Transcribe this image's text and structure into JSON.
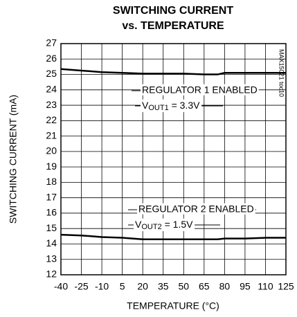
{
  "chart_data": {
    "type": "line",
    "title": [
      "SWITCHING CURRENT",
      "vs. TEMPERATURE"
    ],
    "xlabel": "TEMPERATURE (°C)",
    "ylabel": "SWITCHING CURRENT (mA)",
    "watermark": "MAX15021 toc10",
    "x": [
      -40,
      -25,
      -10,
      5,
      20,
      35,
      50,
      65,
      75,
      80,
      95,
      110,
      125
    ],
    "series": [
      {
        "color": "#000000",
        "values": [
          25.35,
          25.25,
          25.15,
          25.1,
          25.05,
          25.05,
          25.05,
          25.0,
          25.0,
          25.1,
          25.1,
          25.1,
          25.1
        ]
      },
      {
        "color": "#000000",
        "values": [
          14.6,
          14.55,
          14.45,
          14.4,
          14.3,
          14.3,
          14.3,
          14.3,
          14.3,
          14.35,
          14.35,
          14.4,
          14.4
        ]
      }
    ],
    "annotations": [
      {
        "line1": "REGULATOR 1 ENABLED",
        "v": "V",
        "sub": "OUT1",
        "rest": " = 3.3V"
      },
      {
        "line1": "REGULATOR 2 ENABLED",
        "v": "V",
        "sub": "OUT2",
        "rest": " = 1.5V"
      }
    ],
    "xlim": [
      -40,
      125
    ],
    "xticks": [
      -40,
      -25,
      -10,
      5,
      20,
      35,
      50,
      65,
      80,
      95,
      110,
      125
    ],
    "ylim": [
      12,
      27
    ],
    "yticks": [
      12,
      13,
      14,
      15,
      16,
      17,
      18,
      19,
      20,
      21,
      22,
      23,
      24,
      25,
      26,
      27
    ],
    "grid": true
  }
}
